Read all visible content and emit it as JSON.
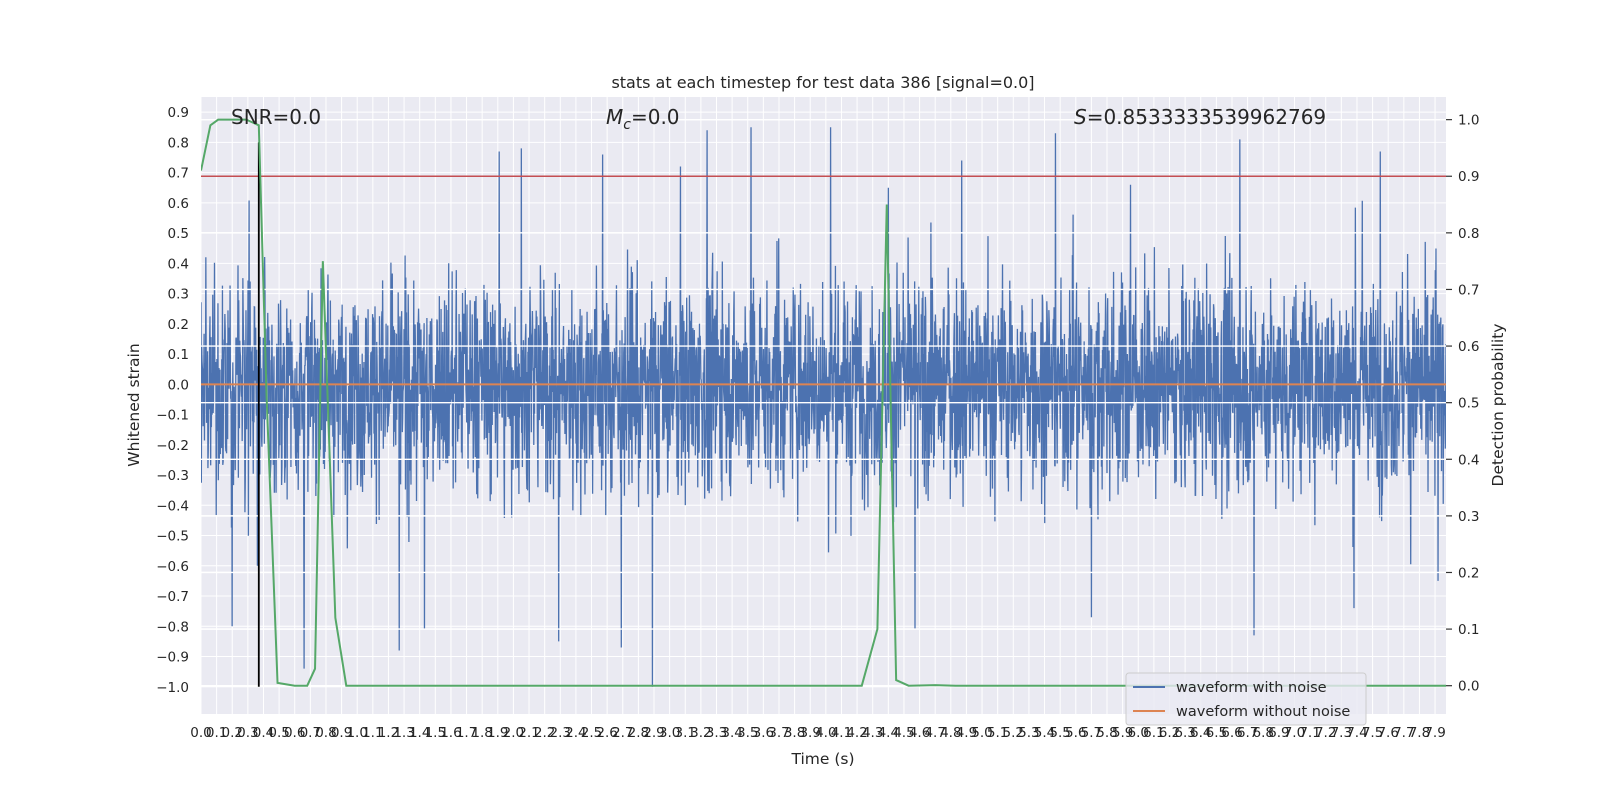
{
  "chart_data": {
    "type": "line",
    "title": "stats at each timestep for test data 386 [signal=0.0]",
    "xlabel": "Time (s)",
    "ylabel_left": "Whitened strain",
    "ylabel_right": "Detection probability",
    "xlim": [
      0.0,
      7.97
    ],
    "ylim_left": [
      -1.09,
      0.95
    ],
    "ylim_right": [
      -0.05,
      1.04
    ],
    "grid": true,
    "legend_position": "bottom-right",
    "x_ticks": [
      "0.0",
      "0.1",
      "0.2",
      "0.3",
      "0.4",
      "0.5",
      "0.6",
      "0.7",
      "0.8",
      "0.9",
      "1.0",
      "1.1",
      "1.2",
      "1.3",
      "1.4",
      "1.5",
      "1.6",
      "1.7",
      "1.8",
      "1.9",
      "2.0",
      "2.1",
      "2.2",
      "2.3",
      "2.4",
      "2.5",
      "2.6",
      "2.7",
      "2.8",
      "2.9",
      "3.0",
      "3.1",
      "3.2",
      "3.3",
      "3.4",
      "3.5",
      "3.6",
      "3.7",
      "3.8",
      "3.9",
      "4.0",
      "4.1",
      "4.2",
      "4.3",
      "4.4",
      "4.5",
      "4.6",
      "4.7",
      "4.8",
      "4.9",
      "5.0",
      "5.1",
      "5.2",
      "5.3",
      "5.4",
      "5.5",
      "5.6",
      "5.7",
      "5.8",
      "5.9",
      "6.0",
      "6.1",
      "6.2",
      "6.3",
      "6.4",
      "6.5",
      "6.6",
      "6.7",
      "6.8",
      "6.9",
      "7.0",
      "7.1",
      "7.2",
      "7.3",
      "7.4",
      "7.5",
      "7.6",
      "7.7",
      "7.8",
      "7.9"
    ],
    "y_ticks_left": [
      "0.9",
      "0.8",
      "0.7",
      "0.6",
      "0.5",
      "0.4",
      "0.3",
      "0.2",
      "0.1",
      "0.0",
      "−0.1",
      "−0.2",
      "−0.3",
      "−0.4",
      "−0.5",
      "−0.6",
      "−0.7",
      "−0.8",
      "−0.9",
      "−1.0"
    ],
    "y_ticks_right": [
      "1.0",
      "0.9",
      "0.8",
      "0.7",
      "0.6",
      "0.5",
      "0.4",
      "0.3",
      "0.2",
      "0.1",
      "0.0"
    ],
    "annotations": [
      {
        "text": "SNR=0.0",
        "x": 0.19
      },
      {
        "text": "=0.0",
        "symbol": "M",
        "subscript": "c",
        "x": 2.6
      },
      {
        "text": "=0.8533333539962769",
        "symbol": "S",
        "x": 5.7
      }
    ],
    "threshold": {
      "y_right": 0.9,
      "color": "#c44e52"
    },
    "marker_line": {
      "x": 0.37,
      "y_left_from": -1.0,
      "y_left_to": 0.8,
      "color": "#000000"
    },
    "series": [
      {
        "name": "waveform with noise",
        "axis": "left",
        "color": "#4c72b0",
        "noise_description": "dense noise, most values within ±0.55, occasional spikes",
        "notable_extrema": [
          {
            "x": 0.03,
            "y": 0.42
          },
          {
            "x": 0.2,
            "y": -0.8
          },
          {
            "x": 0.36,
            "y": -0.6
          },
          {
            "x": 0.66,
            "y": -0.94
          },
          {
            "x": 0.79,
            "y": -0.28
          },
          {
            "x": 1.27,
            "y": -0.88
          },
          {
            "x": 1.43,
            "y": -0.81
          },
          {
            "x": 1.91,
            "y": 0.77
          },
          {
            "x": 2.05,
            "y": 0.78
          },
          {
            "x": 2.29,
            "y": -0.85
          },
          {
            "x": 2.57,
            "y": 0.76
          },
          {
            "x": 2.69,
            "y": -0.87
          },
          {
            "x": 2.89,
            "y": -1.0
          },
          {
            "x": 3.07,
            "y": 0.72
          },
          {
            "x": 3.24,
            "y": 0.84
          },
          {
            "x": 3.52,
            "y": 0.85
          },
          {
            "x": 4.03,
            "y": 0.85
          },
          {
            "x": 4.4,
            "y": 0.65
          },
          {
            "x": 4.57,
            "y": -0.81
          },
          {
            "x": 4.87,
            "y": 0.74
          },
          {
            "x": 5.47,
            "y": 0.83
          },
          {
            "x": 5.7,
            "y": -0.77
          },
          {
            "x": 5.95,
            "y": 0.66
          },
          {
            "x": 6.65,
            "y": 0.81
          },
          {
            "x": 6.74,
            "y": -0.83
          },
          {
            "x": 7.38,
            "y": -0.74
          },
          {
            "x": 7.55,
            "y": 0.77
          },
          {
            "x": 7.92,
            "y": -0.65
          }
        ]
      },
      {
        "name": "waveform without noise",
        "axis": "left",
        "color": "#dd8452",
        "x": [
          0.0,
          7.97
        ],
        "y": [
          0.0,
          0.0
        ]
      },
      {
        "axis": "right",
        "color": "#55a868",
        "x": [
          0.0,
          0.06,
          0.11,
          0.2,
          0.29,
          0.37,
          0.42,
          0.49,
          0.6,
          0.68,
          0.73,
          0.78,
          0.86,
          0.93,
          1.0,
          2.0,
          3.0,
          4.0,
          4.23,
          4.33,
          4.39,
          4.45,
          4.53,
          4.7,
          4.83,
          6.0,
          7.97
        ],
        "y": [
          0.91,
          0.99,
          1.0,
          1.0,
          1.0,
          0.99,
          0.51,
          0.005,
          0.0,
          0.0,
          0.03,
          0.75,
          0.12,
          0.0,
          0.0,
          0.0,
          0.0,
          0.0,
          0.0,
          0.1,
          0.85,
          0.01,
          0.0,
          0.001,
          0.0,
          0.0,
          0.0
        ]
      }
    ]
  }
}
